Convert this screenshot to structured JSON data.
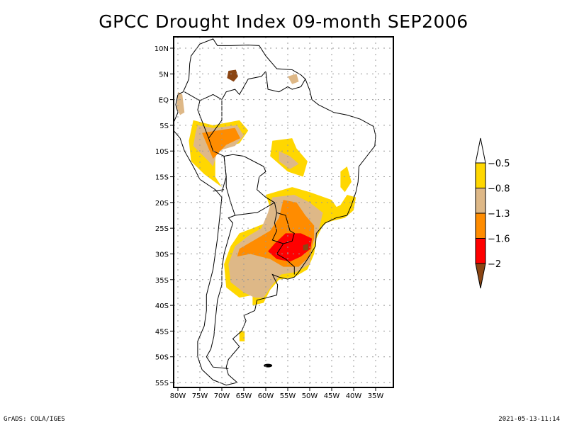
{
  "title": "GPCC Drought Index 09-month SEP2006",
  "footer": {
    "left": "GrADS: COLA/IGES",
    "right": "2021-05-13-11:14"
  },
  "chart_data": {
    "type": "heatmap",
    "title": "GPCC Drought Index 09-month SEP2006",
    "xlabel": "",
    "ylabel": "",
    "xlim": [
      -81,
      -31
    ],
    "ylim": [
      -56,
      12
    ],
    "grid": true,
    "x_ticks": [
      "80W",
      "75W",
      "70W",
      "65W",
      "60W",
      "55W",
      "50W",
      "45W",
      "40W",
      "35W"
    ],
    "x_tick_values": [
      -80,
      -75,
      -70,
      -65,
      -60,
      -55,
      -50,
      -45,
      -40,
      -35
    ],
    "y_ticks": [
      "10N",
      "5N",
      "EQ",
      "5S",
      "10S",
      "15S",
      "20S",
      "25S",
      "30S",
      "35S",
      "40S",
      "45S",
      "50S",
      "55S"
    ],
    "y_tick_values": [
      10,
      5,
      0,
      -5,
      -10,
      -15,
      -20,
      -25,
      -30,
      -35,
      -40,
      -45,
      -50,
      -55
    ],
    "colorbar": {
      "placement": "right",
      "levels": [
        "-0.5",
        "-0.8",
        "-1.3",
        "-1.6",
        "-2"
      ],
      "bins": [
        {
          "range": "> -0.5",
          "color": "#ffffff"
        },
        {
          "range": "-0.8 to -0.5",
          "color": "#ffd700"
        },
        {
          "range": "-1.3 to -0.8",
          "color": "#deb887"
        },
        {
          "range": "-1.6 to -1.3",
          "color": "#ff8c00"
        },
        {
          "range": "-2 to -1.6",
          "color": "#ff0000"
        },
        {
          "range": "< -2",
          "color": "#8b4513"
        }
      ]
    },
    "regions": [
      {
        "name": "southern-venezuela",
        "level": 5,
        "points": [
          [
            -68.5,
            5.6
          ],
          [
            -66.8,
            5.8
          ],
          [
            -66.3,
            4.5
          ],
          [
            -67.3,
            3.5
          ],
          [
            -68.8,
            4.2
          ]
        ]
      },
      {
        "name": "northern-peru-acre",
        "level": 5,
        "points": [
          [
            -71,
            -6
          ],
          [
            -68,
            -5.8
          ],
          [
            -66.5,
            -7.2
          ],
          [
            -68.5,
            -8
          ],
          [
            -71,
            -7.5
          ]
        ]
      },
      {
        "name": "northern-peru-yellow",
        "level": 1,
        "points": [
          [
            -76.5,
            -4
          ],
          [
            -72,
            -5
          ],
          [
            -66,
            -4
          ],
          [
            -64,
            -6
          ],
          [
            -66,
            -8.5
          ],
          [
            -70,
            -9.5
          ],
          [
            -71.5,
            -11
          ],
          [
            -71.5,
            -15
          ],
          [
            -70,
            -17
          ],
          [
            -74,
            -14.5
          ],
          [
            -77,
            -12
          ],
          [
            -77.5,
            -8
          ]
        ]
      },
      {
        "name": "northern-peru-tan",
        "level": 2,
        "points": [
          [
            -75.5,
            -5
          ],
          [
            -72,
            -5.5
          ],
          [
            -66.5,
            -5
          ],
          [
            -65,
            -7
          ],
          [
            -67,
            -9
          ],
          [
            -71,
            -10
          ],
          [
            -72,
            -13
          ],
          [
            -73,
            -12
          ],
          [
            -76.5,
            -9
          ],
          [
            -76,
            -6.5
          ]
        ]
      },
      {
        "name": "northern-peru-orange",
        "level": 3,
        "points": [
          [
            -74.5,
            -6.5
          ],
          [
            -71,
            -6
          ],
          [
            -67,
            -5.5
          ],
          [
            -65.8,
            -7.5
          ],
          [
            -69,
            -8.8
          ],
          [
            -72,
            -11.5
          ],
          [
            -73,
            -9.5
          ]
        ]
      },
      {
        "name": "mato-grosso-yellow",
        "level": 1,
        "points": [
          [
            -58.5,
            -8
          ],
          [
            -54,
            -7.5
          ],
          [
            -53,
            -9.5
          ],
          [
            -50.5,
            -12
          ],
          [
            -51.5,
            -15
          ],
          [
            -55,
            -14
          ],
          [
            -59,
            -11
          ]
        ]
      },
      {
        "name": "mato-grosso-tan",
        "level": 2,
        "points": [
          [
            -57,
            -10
          ],
          [
            -54.5,
            -11
          ],
          [
            -52.5,
            -12.5
          ],
          [
            -54.5,
            -13.5
          ],
          [
            -57,
            -12
          ]
        ]
      },
      {
        "name": "south-yellow",
        "level": 1,
        "points": [
          [
            -60,
            -18.5
          ],
          [
            -54,
            -17
          ],
          [
            -50,
            -18
          ],
          [
            -45,
            -19.5
          ],
          [
            -43,
            -22
          ],
          [
            -47,
            -24.5
          ],
          [
            -48.5,
            -27
          ],
          [
            -49,
            -30
          ],
          [
            -50.5,
            -33
          ],
          [
            -53.5,
            -34.5
          ],
          [
            -57,
            -35
          ],
          [
            -59,
            -37
          ],
          [
            -60.5,
            -39.5
          ],
          [
            -63,
            -40
          ],
          [
            -63,
            -38
          ],
          [
            -66,
            -38.5
          ],
          [
            -69,
            -36.5
          ],
          [
            -69.5,
            -32
          ],
          [
            -68,
            -28.5
          ],
          [
            -66,
            -26
          ],
          [
            -63,
            -25
          ],
          [
            -60,
            -24
          ],
          [
            -59,
            -21
          ]
        ]
      },
      {
        "name": "south-tan",
        "level": 2,
        "points": [
          [
            -58.5,
            -19
          ],
          [
            -53.5,
            -18.5
          ],
          [
            -50,
            -20
          ],
          [
            -47,
            -22
          ],
          [
            -48,
            -25.5
          ],
          [
            -49.5,
            -29
          ],
          [
            -50,
            -32
          ],
          [
            -53,
            -33.5
          ],
          [
            -56.5,
            -34
          ],
          [
            -58.5,
            -36
          ],
          [
            -60.5,
            -38.5
          ],
          [
            -62.5,
            -38.5
          ],
          [
            -65,
            -37.5
          ],
          [
            -68,
            -35.5
          ],
          [
            -68.5,
            -32
          ],
          [
            -67,
            -28.5
          ],
          [
            -64,
            -26.5
          ],
          [
            -61,
            -25
          ],
          [
            -59.5,
            -22
          ]
        ]
      },
      {
        "name": "south-orange",
        "level": 3,
        "points": [
          [
            -56,
            -19.5
          ],
          [
            -53,
            -20
          ],
          [
            -51,
            -22.5
          ],
          [
            -49,
            -24.5
          ],
          [
            -49,
            -27
          ],
          [
            -50,
            -30.5
          ],
          [
            -52.5,
            -32.5
          ],
          [
            -56,
            -32.5
          ],
          [
            -59,
            -31
          ],
          [
            -63.5,
            -30
          ],
          [
            -66.5,
            -30.5
          ],
          [
            -66,
            -29
          ],
          [
            -62,
            -27
          ],
          [
            -59,
            -25.5
          ],
          [
            -57,
            -23
          ]
        ]
      },
      {
        "name": "south-red",
        "level": 4,
        "points": [
          [
            -55.5,
            -26
          ],
          [
            -52,
            -26
          ],
          [
            -49.5,
            -27
          ],
          [
            -49.8,
            -29
          ],
          [
            -52,
            -30.5
          ],
          [
            -54.5,
            -31.5
          ],
          [
            -57.5,
            -31
          ],
          [
            -59.5,
            -29.5
          ],
          [
            -58,
            -28
          ]
        ]
      },
      {
        "name": "south-brown",
        "level": 5,
        "points": [
          [
            -51.5,
            -28.3
          ],
          [
            -50.3,
            -28
          ],
          [
            -50.3,
            -29.3
          ],
          [
            -51.5,
            -29.3
          ]
        ]
      },
      {
        "name": "bahia-patch-yellow",
        "level": 1,
        "points": [
          [
            -43,
            -14
          ],
          [
            -41.5,
            -13
          ],
          [
            -40.5,
            -16
          ],
          [
            -42,
            -18
          ],
          [
            -43,
            -17
          ]
        ]
      },
      {
        "name": "east-coast-yellow",
        "level": 1,
        "points": [
          [
            -41.5,
            -18.5
          ],
          [
            -39.5,
            -19
          ],
          [
            -40,
            -21.5
          ],
          [
            -42,
            -23
          ],
          [
            -44.5,
            -23.5
          ],
          [
            -46.5,
            -24
          ],
          [
            -45.5,
            -21.5
          ],
          [
            -43,
            -20.5
          ]
        ]
      },
      {
        "name": "patagonia-yellow",
        "level": 1,
        "points": [
          [
            -66,
            -45
          ],
          [
            -64.8,
            -45
          ],
          [
            -64.8,
            -47
          ],
          [
            -66,
            -47
          ]
        ]
      },
      {
        "name": "ecuador-tan",
        "level": 2,
        "points": [
          [
            -80,
            1.5
          ],
          [
            -79,
            1
          ],
          [
            -78.5,
            -2.5
          ],
          [
            -79.5,
            -3
          ],
          [
            -80.3,
            -1.5
          ]
        ]
      },
      {
        "name": "guyana-tan",
        "level": 2,
        "points": [
          [
            -55,
            4.5
          ],
          [
            -53,
            5
          ],
          [
            -52.5,
            3.5
          ],
          [
            -54,
            3
          ]
        ]
      }
    ]
  }
}
